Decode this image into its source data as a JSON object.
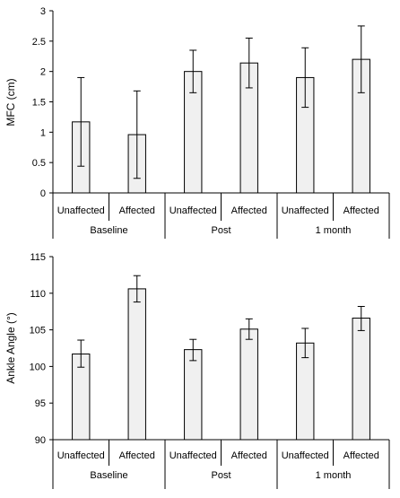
{
  "chart_data": [
    {
      "type": "bar",
      "title": "",
      "ylabel": "MFC (cm)",
      "xlabel": "",
      "ylim": [
        0,
        3
      ],
      "yticks": [
        0,
        0.5,
        1,
        1.5,
        2,
        2.5,
        3
      ],
      "ytick_labels": [
        "0",
        "0.5",
        "1",
        "1.5",
        "2",
        "2.5",
        "3"
      ],
      "grid": false,
      "categories": [
        "Unaffected",
        "Affected",
        "Unaffected",
        "Affected",
        "Unaffected",
        "Affected"
      ],
      "groups": [
        {
          "label": "Baseline",
          "span": 2
        },
        {
          "label": "Post",
          "span": 2
        },
        {
          "label": "1 month",
          "span": 2
        }
      ],
      "values": [
        1.17,
        0.96,
        2.0,
        2.14,
        1.9,
        2.2
      ],
      "error_high": [
        1.9,
        1.68,
        2.35,
        2.55,
        2.39,
        2.75
      ],
      "error_low": [
        0.44,
        0.24,
        1.65,
        1.73,
        1.41,
        1.65
      ],
      "bar_color": "#f0f0f0",
      "edge_color": "#000000"
    },
    {
      "type": "bar",
      "title": "",
      "ylabel": "Ankle Angle (°)",
      "xlabel": "",
      "ylim": [
        90,
        115
      ],
      "yticks": [
        90,
        95,
        100,
        105,
        110,
        115
      ],
      "ytick_labels": [
        "90",
        "95",
        "100",
        "105",
        "110",
        "115"
      ],
      "grid": false,
      "categories": [
        "Unaffected",
        "Affected",
        "Unaffected",
        "Affected",
        "Unaffected",
        "Affected"
      ],
      "groups": [
        {
          "label": "Baseline",
          "span": 2
        },
        {
          "label": "Post",
          "span": 2
        },
        {
          "label": "1 month",
          "span": 2
        }
      ],
      "values": [
        101.7,
        110.6,
        102.3,
        105.1,
        103.2,
        106.6
      ],
      "error_high": [
        103.6,
        112.4,
        103.7,
        106.5,
        105.2,
        108.2
      ],
      "error_low": [
        99.9,
        108.8,
        100.8,
        103.7,
        101.2,
        104.9
      ],
      "bar_color": "#f0f0f0",
      "edge_color": "#000000"
    }
  ]
}
